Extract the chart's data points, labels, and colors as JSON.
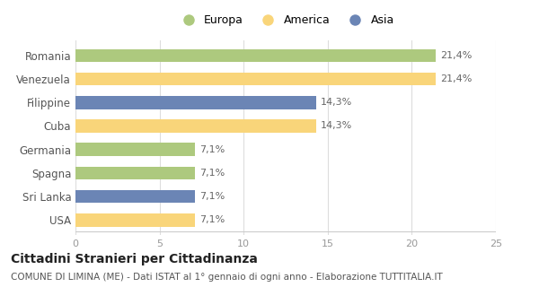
{
  "categories": [
    "Romania",
    "Venezuela",
    "Filippine",
    "Cuba",
    "Germania",
    "Spagna",
    "Sri Lanka",
    "USA"
  ],
  "values": [
    21.4,
    21.4,
    14.3,
    14.3,
    7.1,
    7.1,
    7.1,
    7.1
  ],
  "labels": [
    "21,4%",
    "21,4%",
    "14,3%",
    "14,3%",
    "7,1%",
    "7,1%",
    "7,1%",
    "7,1%"
  ],
  "colors": [
    "#adc97e",
    "#f9d57a",
    "#6b85b5",
    "#f9d57a",
    "#adc97e",
    "#adc97e",
    "#6b85b5",
    "#f9d57a"
  ],
  "legend_labels": [
    "Europa",
    "America",
    "Asia"
  ],
  "legend_colors": [
    "#adc97e",
    "#f9d57a",
    "#6b85b5"
  ],
  "xlim": [
    0,
    25
  ],
  "xticks": [
    0,
    5,
    10,
    15,
    20,
    25
  ],
  "title": "Cittadini Stranieri per Cittadinanza",
  "subtitle": "COMUNE DI LIMINA (ME) - Dati ISTAT al 1° gennaio di ogni anno - Elaborazione TUTTITALIA.IT",
  "background_color": "#ffffff",
  "plot_bg_color": "#ffffff",
  "title_fontsize": 10,
  "subtitle_fontsize": 7.5,
  "bar_height": 0.55
}
